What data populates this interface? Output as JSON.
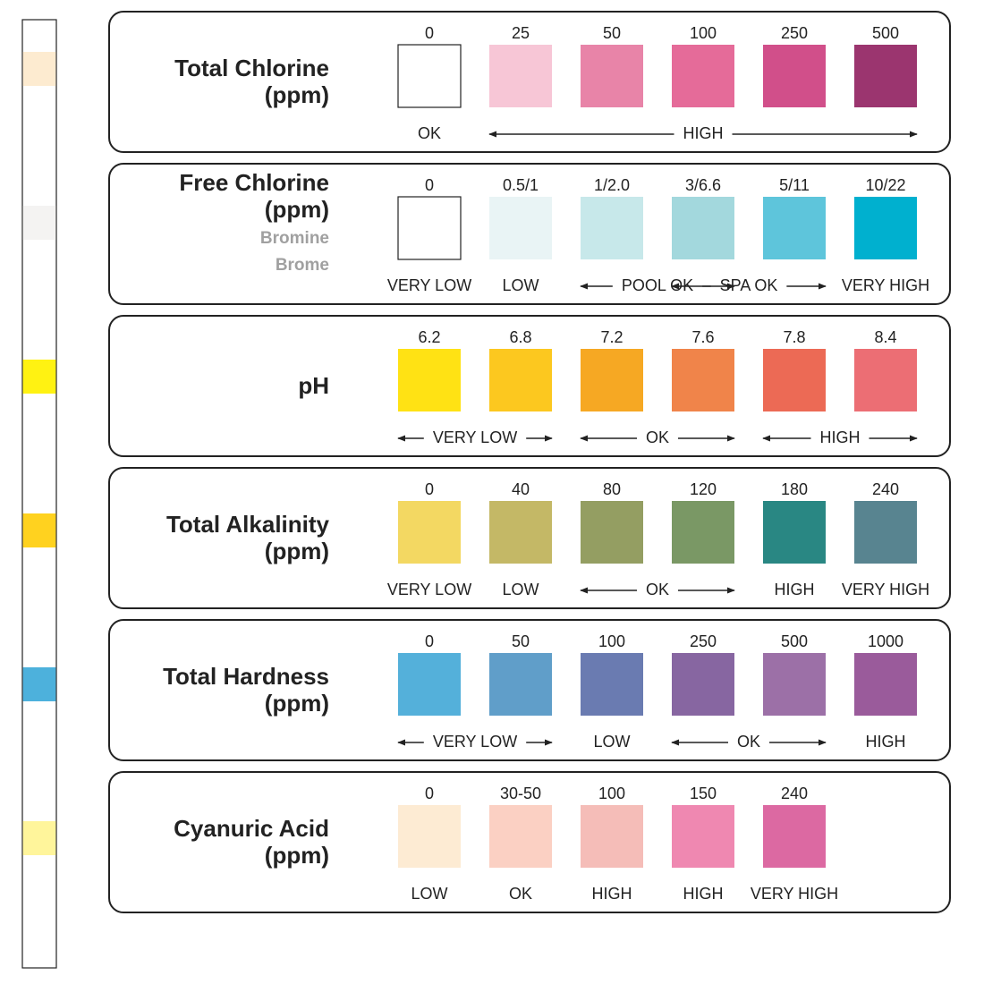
{
  "strip": {
    "pads": [
      "#fdebd0",
      "#f4f3f2",
      "#fff212",
      "#ffd21f",
      "#4db1dc",
      "#fff59b"
    ]
  },
  "panels": [
    {
      "title": [
        "Total Chlorine",
        "(ppm)"
      ],
      "subtitle": [],
      "swatches": [
        {
          "label": "0",
          "color": "#ffffff"
        },
        {
          "label": "25",
          "color": "#f7c6d6"
        },
        {
          "label": "50",
          "color": "#e884a8"
        },
        {
          "label": "100",
          "color": "#e56b99"
        },
        {
          "label": "250",
          "color": "#d14f8a"
        },
        {
          "label": "500",
          "color": "#9b356f"
        }
      ],
      "ranges": [
        "OK",
        "HIGH"
      ]
    },
    {
      "title": [
        "Free Chlorine",
        "(ppm)"
      ],
      "subtitle": [
        "Bromine",
        "Brome"
      ],
      "swatches": [
        {
          "label": "0",
          "color": "#ffffff"
        },
        {
          "label": "0.5/1",
          "color": "#e9f4f5"
        },
        {
          "label": "1/2.0",
          "color": "#c7e8ea"
        },
        {
          "label": "3/6.6",
          "color": "#a3d8dd"
        },
        {
          "label": "5/11",
          "color": "#5ec5db"
        },
        {
          "label": "10/22",
          "color": "#00b0cf"
        }
      ],
      "ranges": [
        "VERY LOW",
        "LOW",
        "POOL OK",
        "SPA OK",
        "VERY HIGH"
      ]
    },
    {
      "title": [
        "pH"
      ],
      "subtitle": [],
      "swatches": [
        {
          "label": "6.2",
          "color": "#ffe214"
        },
        {
          "label": "6.8",
          "color": "#fcc81f"
        },
        {
          "label": "7.2",
          "color": "#f6a823"
        },
        {
          "label": "7.6",
          "color": "#f0844a"
        },
        {
          "label": "7.8",
          "color": "#ec6a55"
        },
        {
          "label": "8.4",
          "color": "#ec6e74"
        }
      ],
      "ranges": [
        "VERY LOW",
        "OK",
        "HIGH"
      ]
    },
    {
      "title": [
        "Total Alkalinity",
        "(ppm)"
      ],
      "subtitle": [],
      "swatches": [
        {
          "label": "0",
          "color": "#f3d862"
        },
        {
          "label": "40",
          "color": "#c4b866"
        },
        {
          "label": "80",
          "color": "#949e62"
        },
        {
          "label": "120",
          "color": "#7a9865"
        },
        {
          "label": "180",
          "color": "#298783"
        },
        {
          "label": "240",
          "color": "#588490"
        }
      ],
      "ranges": [
        "VERY LOW",
        "LOW",
        "OK",
        "HIGH",
        "VERY HIGH"
      ]
    },
    {
      "title": [
        "Total Hardness",
        "(ppm)"
      ],
      "subtitle": [],
      "swatches": [
        {
          "label": "0",
          "color": "#54b0da"
        },
        {
          "label": "50",
          "color": "#609ec9"
        },
        {
          "label": "100",
          "color": "#6a7bb1"
        },
        {
          "label": "250",
          "color": "#8766a1"
        },
        {
          "label": "500",
          "color": "#9c70a7"
        },
        {
          "label": "1000",
          "color": "#9a5b9b"
        }
      ],
      "ranges": [
        "VERY LOW",
        "LOW",
        "OK",
        "HIGH"
      ]
    },
    {
      "title": [
        "Cyanuric Acid",
        "(ppm)"
      ],
      "subtitle": [],
      "swatches": [
        {
          "label": "0",
          "color": "#fdebd3"
        },
        {
          "label": "30-50",
          "color": "#fbd0c3"
        },
        {
          "label": "100",
          "color": "#f5bdb8"
        },
        {
          "label": "150",
          "color": "#ef88b1"
        },
        {
          "label": "240",
          "color": "#dc69a2"
        }
      ],
      "ranges": [
        "LOW",
        "OK",
        "HIGH",
        "HIGH",
        "VERY HIGH"
      ]
    }
  ]
}
